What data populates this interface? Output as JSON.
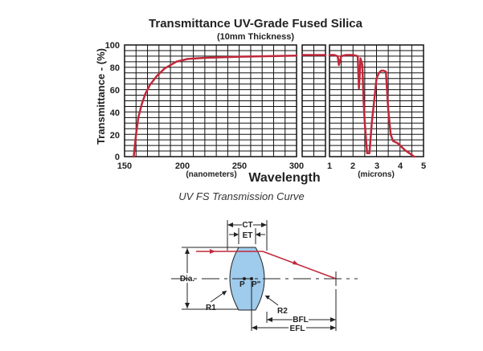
{
  "chart_data": {
    "type": "line",
    "title": "Transmittance UV-Grade Fused Silica",
    "subtitle": "(10mm Thickness)",
    "ylabel": "Transmittance - (%)",
    "xlabel": "Wavelength",
    "ylim": [
      0,
      100
    ],
    "yticks": [
      "0",
      "20",
      "40",
      "60",
      "80",
      "100"
    ],
    "color": "#c0283a",
    "grid": true,
    "panels": [
      {
        "unit_label": "(nanometers)",
        "xlim": [
          150,
          300
        ],
        "xticks": [
          "150",
          "200",
          "250",
          "300"
        ],
        "x": [
          158,
          160,
          162,
          165,
          168,
          172,
          178,
          185,
          195,
          205,
          220,
          250,
          300
        ],
        "y": [
          0,
          20,
          35,
          47,
          56,
          64,
          72,
          79,
          85,
          87.5,
          88.5,
          89.5,
          90.5
        ]
      },
      {
        "unit_label": "",
        "xlim": [
          0,
          1
        ],
        "xticks": [],
        "x": [
          0,
          1
        ],
        "y": [
          91,
          91
        ]
      },
      {
        "unit_label": "(microns)",
        "xlim": [
          1,
          5
        ],
        "xticks": [
          "1",
          "2",
          "3",
          "4",
          "5"
        ],
        "x": [
          1.0,
          1.2,
          1.35,
          1.4,
          1.5,
          1.7,
          2.0,
          2.2,
          2.25,
          2.28,
          2.32,
          2.4,
          2.45,
          2.5,
          2.6,
          2.7,
          2.8,
          2.9,
          3.0,
          3.1,
          3.2,
          3.3,
          3.4,
          3.5,
          3.6,
          3.7,
          3.8,
          3.9,
          4.0,
          4.2,
          4.4,
          4.6
        ],
        "y": [
          91,
          91,
          90,
          82,
          90,
          91,
          91,
          90,
          61,
          70,
          88,
          82,
          50,
          30,
          3,
          3,
          30,
          50,
          70,
          75,
          77,
          77,
          76,
          42,
          20,
          14,
          13,
          12,
          10,
          6,
          3,
          0
        ]
      }
    ],
    "caption": "UV FS Transmission Curve"
  },
  "diagram": {
    "ct_label": "CT",
    "et_label": "ET",
    "dia_label": "Dia.",
    "p_label": "P",
    "p2_label": "P\"",
    "r1_label": "R1",
    "r2_label": "R2",
    "bfl_label": "BFL",
    "efl_label": "EFL",
    "lens_fill": "#9fcbec",
    "ray_color": "#c0283a"
  }
}
